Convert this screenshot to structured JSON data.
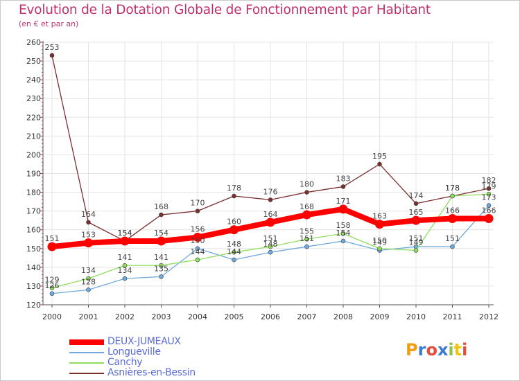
{
  "chart_data": {
    "type": "line",
    "title": "Evolution de la Dotation Globale de Fonctionnement par Habitant",
    "subtitle": "(en € et par an)",
    "xlabel": "",
    "ylabel": "",
    "categories": [
      "2000",
      "2001",
      "2002",
      "2003",
      "2004",
      "2005",
      "2006",
      "2007",
      "2008",
      "2009",
      "2010",
      "2011",
      "2012"
    ],
    "ylim": [
      120,
      260
    ],
    "yticks": [
      120,
      130,
      140,
      150,
      160,
      170,
      180,
      190,
      200,
      210,
      220,
      230,
      240,
      250,
      260
    ],
    "grid": true,
    "legend": "bottom-left",
    "series": [
      {
        "name": "DEUX-JUMEAUX",
        "color": "#ff0000",
        "values": [
          151,
          153,
          154,
          154,
          156,
          160,
          164,
          168,
          171,
          163,
          165,
          166,
          166
        ]
      },
      {
        "name": "Longueville",
        "color": "#6fa8dc",
        "values": [
          126,
          128,
          134,
          135,
          150,
          144,
          148,
          151,
          154,
          149,
          151,
          151,
          173
        ]
      },
      {
        "name": "Canchy",
        "color": "#8ede5e",
        "values": [
          129,
          134,
          141,
          141,
          144,
          148,
          151,
          155,
          158,
          150,
          149,
          178,
          179
        ]
      },
      {
        "name": "Asnières-en-Bessin",
        "color": "#7a2f2f",
        "values": [
          253,
          164,
          154,
          168,
          170,
          178,
          176,
          180,
          183,
          195,
          174,
          178,
          182
        ]
      }
    ]
  },
  "logo": {
    "text": "Proxiti",
    "colors": [
      "#f39c12",
      "#3a7bd5",
      "#e74c3c",
      "#3a7bd5",
      "#8bc34a",
      "#f1c40f",
      "#e74c3c"
    ]
  }
}
